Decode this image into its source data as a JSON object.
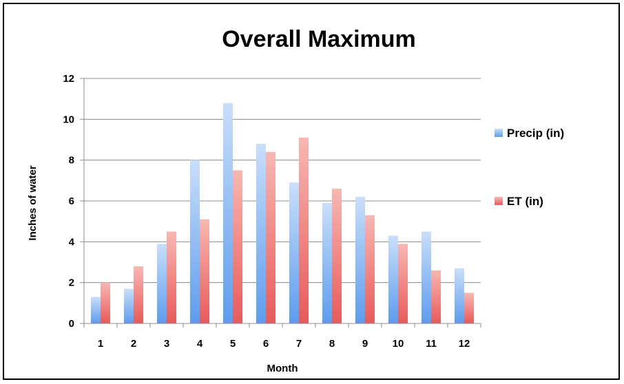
{
  "chart_data": {
    "type": "bar",
    "title": "Overall Maximum",
    "xlabel": "Month",
    "ylabel": "Inches of water",
    "categories": [
      "1",
      "2",
      "3",
      "4",
      "5",
      "6",
      "7",
      "8",
      "9",
      "10",
      "11",
      "12"
    ],
    "series": [
      {
        "name": "Precip (in)",
        "color": "#6aa6f0",
        "values": [
          1.3,
          1.7,
          3.9,
          8.0,
          10.8,
          8.8,
          6.9,
          5.9,
          6.2,
          4.3,
          4.5,
          2.7
        ]
      },
      {
        "name": "ET (in)",
        "color": "#ef6b6b",
        "values": [
          2.0,
          2.8,
          4.5,
          5.1,
          7.5,
          8.4,
          9.1,
          6.6,
          5.3,
          3.9,
          2.6,
          1.5
        ]
      }
    ],
    "ylim": [
      0,
      12
    ],
    "yticks": [
      "0",
      "2",
      "4",
      "6",
      "8",
      "10",
      "12"
    ],
    "grid": true,
    "legend_position": "right"
  }
}
